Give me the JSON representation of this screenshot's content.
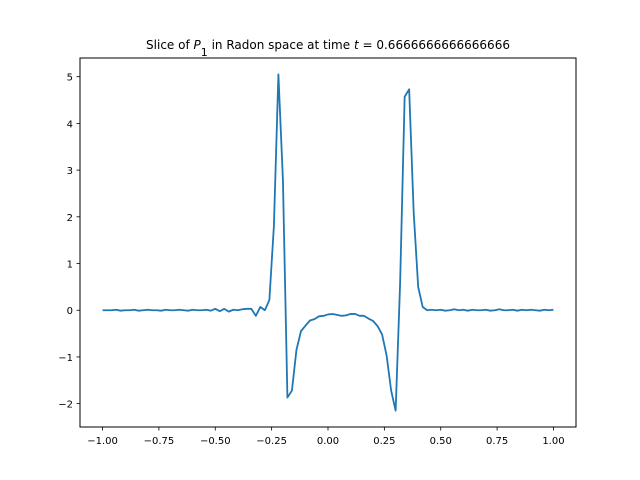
{
  "chart_data": {
    "type": "line",
    "title": "Slice of P₁ in Radon space at time t = 0.6666666666666666",
    "title_parts": {
      "prefix": "Slice of ",
      "symbol": "P",
      "subscript": "1",
      "middle": " in Radon space at time ",
      "variable": "t",
      "value": " = 0.6666666666666666"
    },
    "xlabel": "",
    "ylabel": "",
    "xlim": [
      -1.1,
      1.1
    ],
    "ylim": [
      -2.5,
      5.4
    ],
    "grid": false,
    "line_color": "#1f77b4",
    "x_ticks": [
      -1.0,
      -0.75,
      -0.5,
      -0.25,
      0.0,
      0.25,
      0.5,
      0.75,
      1.0
    ],
    "x_tick_labels": [
      "−1.00",
      "−0.75",
      "−0.50",
      "−0.25",
      "0.00",
      "0.25",
      "0.50",
      "0.75",
      "1.00"
    ],
    "y_ticks": [
      -2,
      -1,
      0,
      1,
      2,
      3,
      4,
      5
    ],
    "y_tick_labels": [
      "−2",
      "−1",
      "0",
      "1",
      "2",
      "3",
      "4",
      "5"
    ],
    "series": [
      {
        "x": [
          -1.0,
          -0.98,
          -0.96,
          -0.94,
          -0.92,
          -0.9,
          -0.88,
          -0.86,
          -0.84,
          -0.82,
          -0.8,
          -0.78,
          -0.76,
          -0.74,
          -0.72,
          -0.7,
          -0.68,
          -0.66,
          -0.64,
          -0.62,
          -0.6,
          -0.58,
          -0.56,
          -0.54,
          -0.52,
          -0.5,
          -0.48,
          -0.46,
          -0.44,
          -0.42,
          -0.4,
          -0.38,
          -0.36,
          -0.34,
          -0.32,
          -0.3,
          -0.28,
          -0.26,
          -0.24,
          -0.22,
          -0.2,
          -0.18,
          -0.16,
          -0.14,
          -0.12,
          -0.1,
          -0.08,
          -0.06,
          -0.04,
          -0.02,
          0.0,
          0.02,
          0.04,
          0.06,
          0.08,
          0.1,
          0.12,
          0.14,
          0.16,
          0.18,
          0.2,
          0.22,
          0.24,
          0.26,
          0.28,
          0.3,
          0.32,
          0.34,
          0.36,
          0.38,
          0.4,
          0.42,
          0.44,
          0.46,
          0.48,
          0.5,
          0.52,
          0.54,
          0.56,
          0.58,
          0.6,
          0.62,
          0.64,
          0.66,
          0.68,
          0.7,
          0.72,
          0.74,
          0.76,
          0.78,
          0.8,
          0.82,
          0.84,
          0.86,
          0.88,
          0.9,
          0.92,
          0.94,
          0.96,
          0.98,
          1.0
        ],
        "y": [
          0.0,
          0.0,
          0.0,
          0.01,
          -0.01,
          0.0,
          0.0,
          0.01,
          -0.01,
          0.0,
          0.01,
          0.0,
          0.0,
          -0.01,
          0.01,
          0.0,
          0.0,
          0.01,
          0.0,
          -0.01,
          0.01,
          0.0,
          0.0,
          0.01,
          -0.01,
          0.03,
          -0.02,
          0.03,
          -0.03,
          0.01,
          0.0,
          0.02,
          0.03,
          0.03,
          -0.12,
          0.07,
          0.0,
          0.22,
          1.8,
          5.05,
          2.8,
          -1.87,
          -1.72,
          -0.85,
          -0.45,
          -0.33,
          -0.22,
          -0.19,
          -0.13,
          -0.12,
          -0.09,
          -0.08,
          -0.1,
          -0.12,
          -0.11,
          -0.08,
          -0.08,
          -0.12,
          -0.12,
          -0.18,
          -0.23,
          -0.34,
          -0.52,
          -0.97,
          -1.72,
          -2.15,
          0.6,
          4.57,
          4.73,
          2.1,
          0.5,
          0.07,
          0.0,
          0.01,
          0.0,
          0.01,
          -0.01,
          0.0,
          0.02,
          0.0,
          0.01,
          -0.01,
          0.01,
          0.0,
          0.0,
          0.01,
          -0.01,
          0.0,
          0.02,
          0.0,
          0.0,
          0.01,
          -0.01,
          0.01,
          0.0,
          0.01,
          0.0,
          -0.01,
          0.01,
          0.0,
          0.01
        ]
      }
    ]
  }
}
